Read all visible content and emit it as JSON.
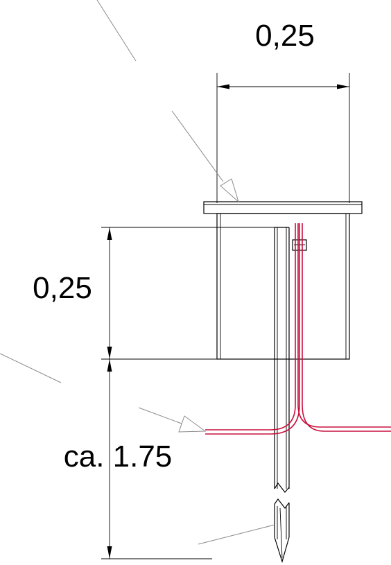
{
  "dimensions": {
    "top_width": "0,25",
    "depth": "0,25",
    "lower_length": "ca. 1.75"
  },
  "colors": {
    "line": "#000000",
    "leader": "#8a8a8a",
    "wire": "#c8103e"
  }
}
